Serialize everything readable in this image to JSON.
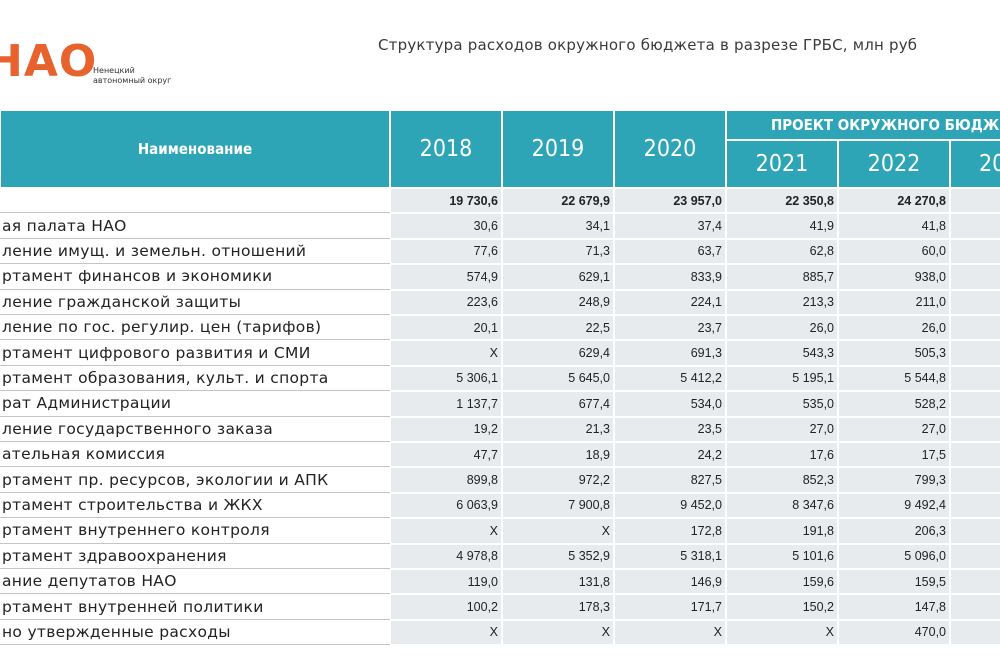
{
  "logo": {
    "mark": "НАО",
    "caption": [
      "Ненецкий",
      "автономный округ"
    ]
  },
  "title": "Структура расходов окружного бюджета в разрезе ГРБС, млн руб",
  "table": {
    "name_header": "Наименование",
    "group_header": "ПРОЕКТ ОКРУЖНОГО БЮДЖЕТ",
    "years": [
      "2018",
      "2019",
      "2020",
      "2021",
      "2022",
      "20"
    ],
    "rows": [
      [
        null,
        "19 730,6",
        "22 679,9",
        "23 957,0",
        "22 350,8",
        "24 270,8"
      ],
      [
        "ая палата НАО",
        "30,6",
        "34,1",
        "37,4",
        "41,9",
        "41,8"
      ],
      [
        "ление имущ. и земельн. отношений",
        "77,6",
        "71,3",
        "63,7",
        "62,8",
        "60,0"
      ],
      [
        "ртамент финансов  и экономики",
        "574,9",
        "629,1",
        "833,9",
        "885,7",
        "938,0"
      ],
      [
        "ление гражданской защиты",
        "223,6",
        "248,9",
        "224,1",
        "213,3",
        "211,0"
      ],
      [
        "ление по гос. регулир. цен (тарифов)",
        "20,1",
        "22,5",
        "23,7",
        "26,0",
        "26,0"
      ],
      [
        "ртамент цифрового развития и СМИ",
        "Х",
        "629,4",
        "691,3",
        "543,3",
        "505,3"
      ],
      [
        "ртамент образования,  культ. и спорта",
        "5 306,1",
        "5 645,0",
        "5 412,2",
        "5 195,1",
        "5 544,8"
      ],
      [
        "рат Администрации",
        "1 137,7",
        "677,4",
        "534,0",
        "535,0",
        "528,2"
      ],
      [
        "ление государственного  заказа",
        "19,2",
        "21,3",
        "23,5",
        "27,0",
        "27,0"
      ],
      [
        "ательная комиссия",
        "47,7",
        "18,9",
        "24,2",
        "17,6",
        "17,5"
      ],
      [
        "ртамент пр. ресурсов, экологии и АПК",
        "899,8",
        "972,2",
        "827,5",
        "852,3",
        "799,3"
      ],
      [
        "ртамент строительства  и ЖКХ",
        "6 063,9",
        "7 900,8",
        "9 452,0",
        "8 347,6",
        "9 492,4"
      ],
      [
        "ртамент внутреннего контроля",
        "Х",
        "Х",
        "172,8",
        "191,8",
        "206,3"
      ],
      [
        "ртамент здравоохранения",
        "4 978,8",
        "5 352,9",
        "5 318,1",
        "5 101,6",
        "5 096,0"
      ],
      [
        "ание депутатов  НАО",
        "119,0",
        "131,8",
        "146,9",
        "159,6",
        "159,5"
      ],
      [
        "ртамент внутренней политики",
        "100,2",
        "178,3",
        "171,7",
        "150,2",
        "147,8"
      ],
      [
        "но утвержденные расходы",
        "Х",
        "Х",
        "Х",
        "Х",
        "470,0"
      ]
    ]
  }
}
